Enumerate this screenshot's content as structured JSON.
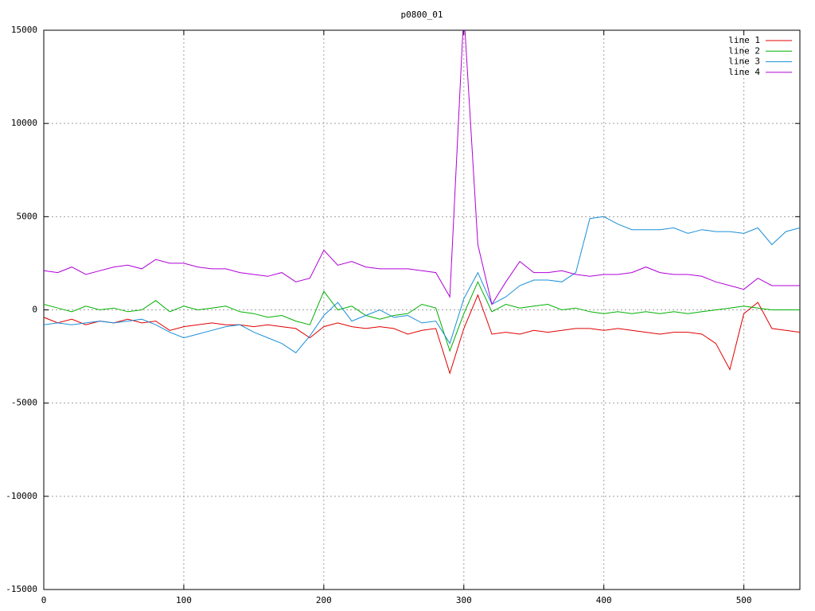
{
  "chart_data": {
    "type": "line",
    "title": "p0800_01",
    "x": [
      0,
      10,
      20,
      30,
      40,
      50,
      60,
      70,
      80,
      90,
      100,
      110,
      120,
      130,
      140,
      150,
      160,
      170,
      180,
      190,
      200,
      210,
      220,
      230,
      240,
      250,
      260,
      270,
      280,
      290,
      300,
      310,
      320,
      330,
      340,
      350,
      360,
      370,
      380,
      390,
      400,
      410,
      420,
      430,
      440,
      450,
      460,
      470,
      480,
      490,
      500,
      510,
      520,
      530,
      540
    ],
    "series": [
      {
        "name": "line 1",
        "color": "#e00000",
        "values": [
          -400,
          -700,
          -500,
          -800,
          -600,
          -700,
          -500,
          -700,
          -600,
          -1100,
          -900,
          -800,
          -700,
          -800,
          -800,
          -900,
          -800,
          -900,
          -1000,
          -1500,
          -900,
          -700,
          -900,
          -1000,
          -900,
          -1000,
          -1300,
          -1100,
          -1000,
          -3400,
          -1000,
          800,
          -1300,
          -1200,
          -1300,
          -1100,
          -1200,
          -1100,
          -1000,
          -1000,
          -1100,
          -1000,
          -1100,
          -1200,
          -1300,
          -1200,
          -1200,
          -1300,
          -1800,
          -3200,
          -200,
          400,
          -1000,
          -1100,
          -1200
        ]
      },
      {
        "name": "line 2",
        "color": "#00b000",
        "values": [
          300,
          100,
          -100,
          200,
          0,
          100,
          -100,
          0,
          500,
          -100,
          200,
          0,
          100,
          200,
          -100,
          -200,
          -400,
          -300,
          -600,
          -800,
          1000,
          0,
          200,
          -300,
          -500,
          -300,
          -200,
          300,
          100,
          -2200,
          -200,
          1500,
          -100,
          300,
          100,
          200,
          300,
          0,
          100,
          -100,
          -200,
          -100,
          -200,
          -100,
          -200,
          -100,
          -200,
          -100,
          0,
          100,
          200,
          100,
          0,
          0,
          0
        ]
      },
      {
        "name": "line 3",
        "color": "#1a8fd8",
        "values": [
          -800,
          -700,
          -800,
          -700,
          -600,
          -700,
          -600,
          -500,
          -800,
          -1200,
          -1500,
          -1300,
          -1100,
          -900,
          -800,
          -1200,
          -1500,
          -1800,
          -2300,
          -1400,
          -300,
          400,
          -600,
          -300,
          0,
          -400,
          -300,
          -700,
          -600,
          -1800,
          600,
          2000,
          300,
          700,
          1300,
          1600,
          1600,
          1500,
          2000,
          4900,
          5000,
          4600,
          4300,
          4300,
          4300,
          4400,
          4100,
          4300,
          4200,
          4200,
          4100,
          4400,
          3500,
          4200,
          4400
        ]
      },
      {
        "name": "line 4",
        "color": "#b000d8",
        "values": [
          2100,
          2000,
          2300,
          1900,
          2100,
          2300,
          2400,
          2200,
          2700,
          2500,
          2500,
          2300,
          2200,
          2200,
          2000,
          1900,
          1800,
          2000,
          1500,
          1700,
          3200,
          2400,
          2600,
          2300,
          2200,
          2200,
          2200,
          2100,
          2000,
          700,
          16000,
          3500,
          300,
          1500,
          2600,
          2000,
          2000,
          2100,
          1900,
          1800,
          1900,
          1900,
          2000,
          2300,
          2000,
          1900,
          1900,
          1800,
          1500,
          1300,
          1100,
          1700,
          1300,
          1300,
          1300
        ]
      }
    ],
    "xlim": [
      0,
      540
    ],
    "ylim": [
      -15000,
      15000
    ],
    "xticks": [
      0,
      100,
      200,
      300,
      400,
      500
    ],
    "yticks": [
      -15000,
      -10000,
      -5000,
      0,
      5000,
      10000,
      15000
    ],
    "grid": true,
    "legend": "top-right"
  }
}
